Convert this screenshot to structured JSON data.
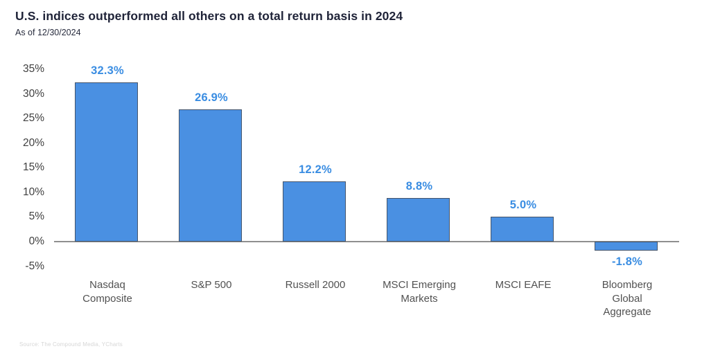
{
  "chart_data": {
    "type": "bar",
    "title": "U.S. indices outperformed all others on a total return basis in 2024",
    "subtitle": "As of 12/30/2024",
    "source": "Source: The Compound Media, YCharts",
    "categories": [
      "Nasdaq Composite",
      "S&P 500",
      "Russell 2000",
      "MSCI Emerging Markets",
      "MSCI EAFE",
      "Bloomberg Global Aggregate"
    ],
    "values": [
      32.3,
      26.9,
      12.2,
      8.8,
      5.0,
      -1.8
    ],
    "value_labels": [
      "32.3%",
      "26.9%",
      "12.2%",
      "8.8%",
      "5.0%",
      "-1.8%"
    ],
    "ylabel": "",
    "xlabel": "",
    "ylim": [
      -5,
      35
    ],
    "y_tick_values": [
      35,
      30,
      25,
      20,
      15,
      10,
      5,
      0,
      -5
    ],
    "y_tick_labels": [
      "35%",
      "30%",
      "25%",
      "20%",
      "15%",
      "10%",
      "5%",
      "0%",
      "-5%"
    ],
    "grid": "off",
    "legend": "none",
    "colors": {
      "bar_fill": "#4a90e2",
      "bar_border": "#44546a",
      "value_label": "#3a8de2",
      "title": "#1f2338",
      "axis_text": "#3f3f3f",
      "zero_line": "#8f8f8f"
    }
  }
}
